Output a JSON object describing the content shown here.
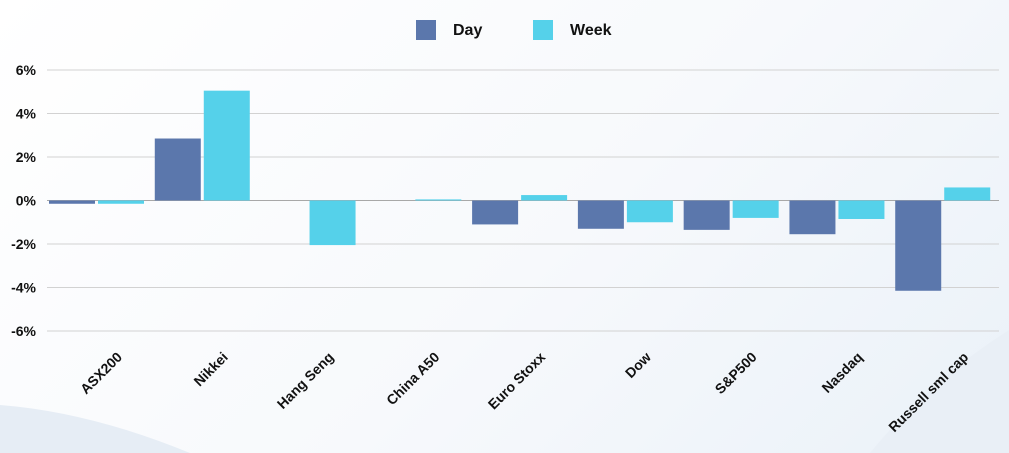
{
  "chart_data": {
    "type": "bar",
    "categories": [
      "ASX200",
      "Nikkei",
      "Hang Seng",
      "China A50",
      "Euro Stoxx",
      "Dow",
      "S&P500",
      "Nasdaq",
      "Russell sml cap"
    ],
    "series": [
      {
        "name": "Day",
        "color": "#5b77ac",
        "values": [
          -0.15,
          2.85,
          0.0,
          0.0,
          -1.1,
          -1.3,
          -1.35,
          -1.55,
          -4.15
        ]
      },
      {
        "name": "Week",
        "color": "#55d1ea",
        "values": [
          -0.15,
          5.05,
          -2.05,
          0.05,
          0.25,
          -1.0,
          -0.8,
          -0.85,
          0.6
        ]
      }
    ],
    "yticks": [
      "6%",
      "4%",
      "2%",
      "0%",
      "-2%",
      "-4%",
      "-6%"
    ],
    "ytick_values": [
      6,
      4,
      2,
      0,
      -2,
      -4,
      -6
    ],
    "ylim": [
      -6,
      6
    ],
    "grid": true,
    "legend_position": "top-center"
  }
}
